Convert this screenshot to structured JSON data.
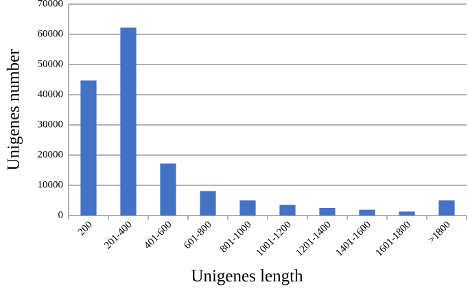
{
  "chart_data": {
    "type": "bar",
    "x_label": "Unigenes length",
    "y_label": "Unigenes number",
    "categories": [
      "200",
      "201-400",
      "401-600",
      "601-800",
      "801-1000",
      "1001-1200",
      "1201-1400",
      "1401-1600",
      "1601-1800",
      ">1800"
    ],
    "values": [
      44700,
      62200,
      17200,
      8100,
      5000,
      3500,
      2500,
      1900,
      1300,
      5000
    ],
    "color": "#4472c4",
    "ylim": [
      0,
      70000
    ],
    "yticks": [
      0,
      10000,
      20000,
      30000,
      40000,
      50000,
      60000,
      70000
    ],
    "grid": true
  }
}
